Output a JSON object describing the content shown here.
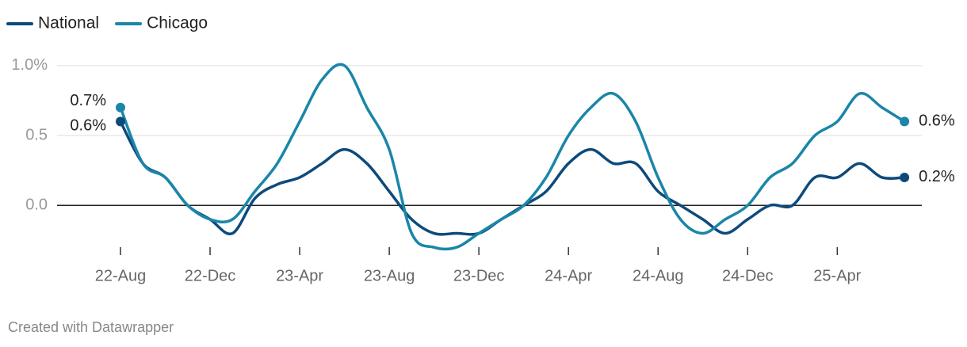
{
  "chart_data": {
    "type": "line",
    "categories": [
      "22-Aug",
      null,
      null,
      null,
      "22-Dec",
      null,
      null,
      null,
      "23-Apr",
      null,
      null,
      null,
      "23-Aug",
      null,
      null,
      null,
      "23-Dec",
      null,
      null,
      null,
      "24-Apr",
      null,
      null,
      null,
      "24-Aug",
      null,
      null,
      null,
      "24-Dec",
      null,
      null,
      null,
      "25-Apr",
      null,
      null,
      null
    ],
    "series": [
      {
        "name": "National",
        "color": "#0d4a7c",
        "values": [
          0.6,
          0.3,
          0.2,
          0.0,
          -0.1,
          -0.2,
          0.05,
          0.15,
          0.2,
          0.3,
          0.4,
          0.3,
          0.1,
          -0.1,
          -0.2,
          -0.2,
          -0.2,
          -0.1,
          0.0,
          0.1,
          0.3,
          0.4,
          0.3,
          0.3,
          0.1,
          0.0,
          -0.1,
          -0.2,
          -0.1,
          0.0,
          0.0,
          0.2,
          0.2,
          0.3,
          0.2,
          0.2
        ],
        "value_labels": [
          "0.6%",
          null,
          null,
          null,
          null,
          null,
          null,
          null,
          null,
          null,
          null,
          null,
          null,
          null,
          null,
          null,
          null,
          null,
          null,
          null,
          null,
          null,
          null,
          null,
          null,
          null,
          null,
          null,
          null,
          null,
          null,
          null,
          null,
          null,
          null,
          "0.2%"
        ]
      },
      {
        "name": "Chicago",
        "color": "#1a86a8",
        "values": [
          0.7,
          0.3,
          0.2,
          0.0,
          -0.1,
          -0.1,
          0.1,
          0.3,
          0.6,
          0.9,
          1.0,
          0.7,
          0.4,
          -0.2,
          -0.3,
          -0.3,
          -0.2,
          -0.1,
          0.0,
          0.2,
          0.5,
          0.7,
          0.8,
          0.6,
          0.2,
          -0.1,
          -0.2,
          -0.1,
          0.0,
          0.2,
          0.3,
          0.5,
          0.6,
          0.8,
          0.7,
          0.6
        ],
        "value_labels": [
          "0.7%",
          null,
          null,
          null,
          null,
          null,
          null,
          null,
          null,
          null,
          null,
          null,
          null,
          null,
          null,
          null,
          null,
          null,
          null,
          null,
          null,
          null,
          null,
          null,
          null,
          null,
          null,
          null,
          null,
          null,
          null,
          null,
          null,
          null,
          null,
          "0.6%"
        ]
      }
    ],
    "ylim": [
      -0.35,
      1.05
    ],
    "yticks": [
      {
        "value": 1.0,
        "label": "1.0%"
      },
      0.5,
      {
        "value": 0,
        "label": "0.0"
      }
    ],
    "grid": true,
    "legend": "top-left",
    "footer": "Created with Datawrapper"
  }
}
